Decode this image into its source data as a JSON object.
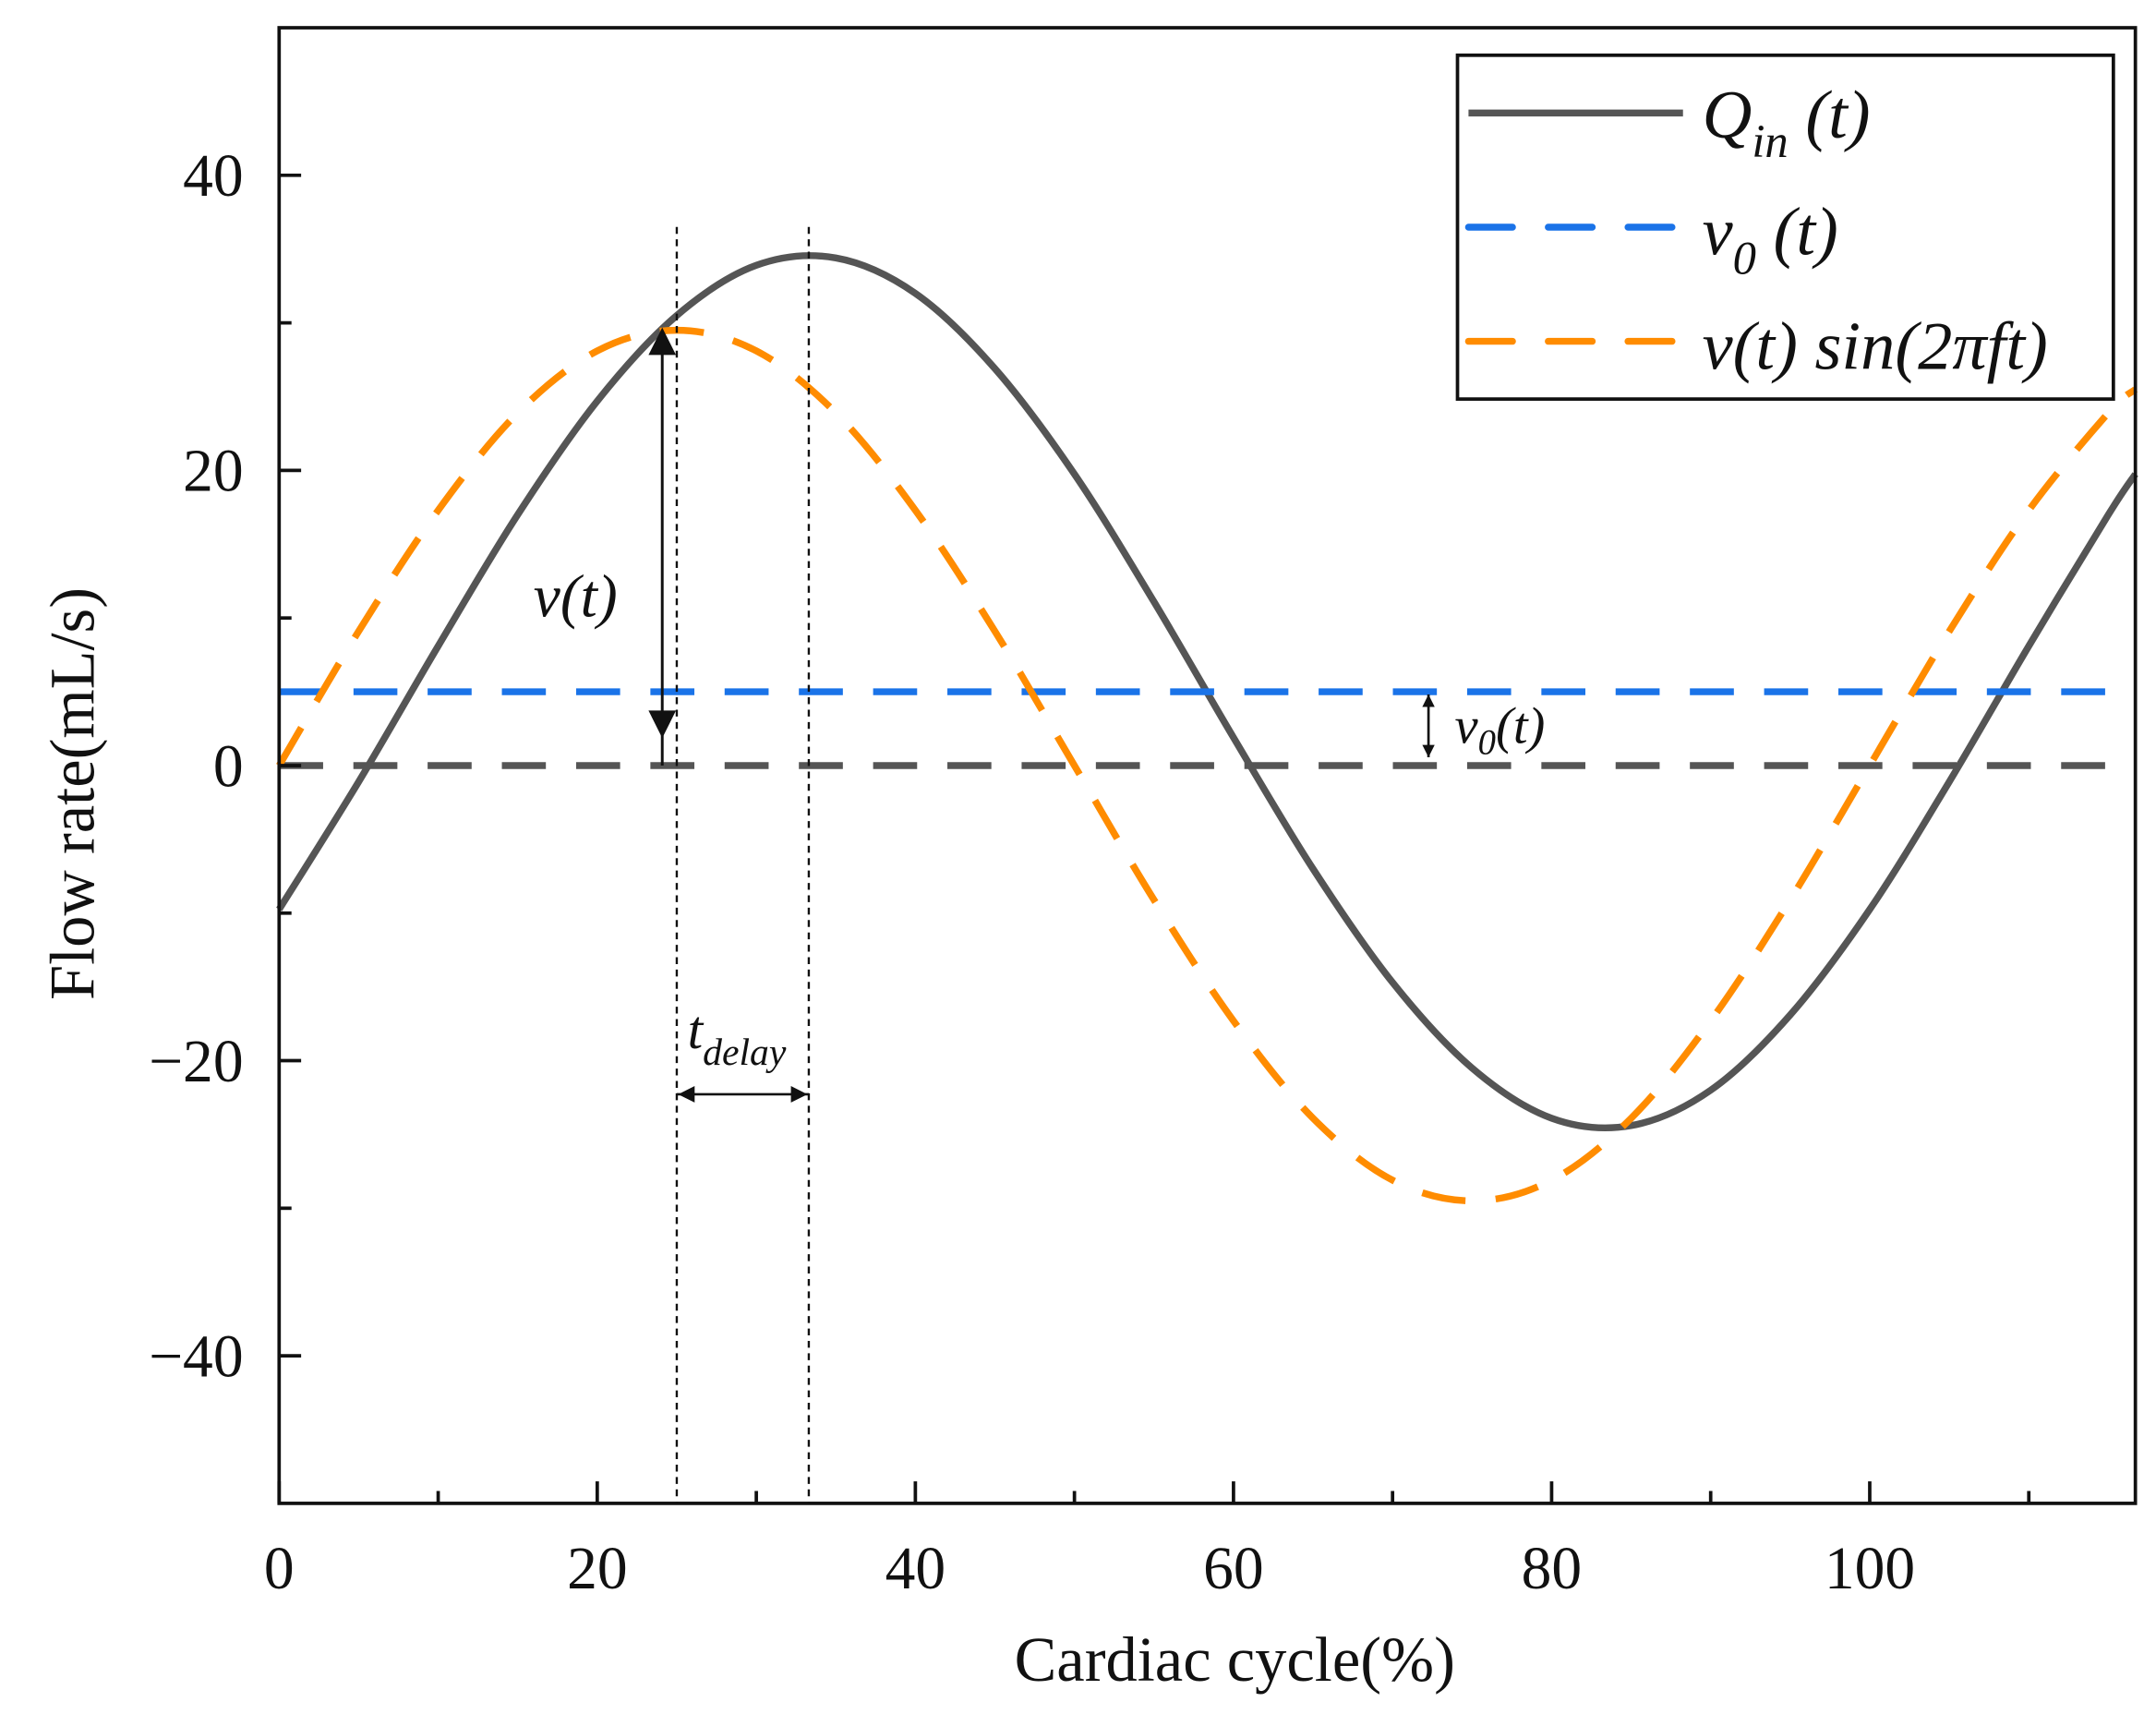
{
  "chart_data": {
    "type": "line",
    "xlabel": "Cardiac cycle(%)",
    "ylabel": "Flow rate(mL/s)",
    "xlim": [
      0,
      116.7
    ],
    "ylim": [
      -50,
      50
    ],
    "xticks": [
      0,
      20,
      40,
      60,
      80,
      100
    ],
    "xtick_labels": [
      "0",
      "20",
      "40",
      "60",
      "80",
      "100"
    ],
    "xminor": [
      10,
      30,
      50,
      70,
      90,
      110
    ],
    "yticks": [
      40,
      20,
      0,
      -20,
      -40
    ],
    "ytick_labels": [
      "40",
      "20",
      "0",
      "−20",
      "−40"
    ],
    "yminor": [
      30,
      10,
      -10,
      -30
    ],
    "grid": false,
    "legend_placement": "top-right",
    "x": [
      0,
      5,
      10,
      15,
      20,
      25,
      30,
      35,
      40,
      45,
      50,
      55,
      60,
      65,
      70,
      75,
      80,
      85,
      90,
      95,
      100,
      105,
      110,
      115,
      116.7
    ],
    "series": [
      {
        "name": "Qin (t)",
        "style": "solid",
        "color": "#555555",
        "values": [
          -9.75,
          -1.1,
          8.1,
          17.0,
          24.7,
          30.5,
          33.9,
          34.4,
          32.0,
          26.9,
          19.75,
          11.1,
          1.9,
          -7.0,
          -14.7,
          -20.5,
          -23.9,
          -24.4,
          -22.0,
          -16.9,
          -9.75,
          -1.1,
          8.1,
          17.0,
          19.75
        ]
      },
      {
        "name": "v0 (t)",
        "style": "dashed",
        "color": "#1a73e8",
        "values": [
          5,
          5,
          5,
          5,
          5,
          5,
          5,
          5,
          5,
          5,
          5,
          5,
          5,
          5,
          5,
          5,
          5,
          5,
          5,
          5,
          5,
          5,
          5,
          5,
          5
        ]
      },
      {
        "name": "v(t) sin(2πft)",
        "style": "dashed",
        "color": "#ff8c00",
        "values": [
          0,
          9.1,
          17.3,
          23.9,
          28.1,
          29.5,
          28.1,
          23.9,
          17.3,
          9.1,
          0,
          -9.1,
          -17.3,
          -23.9,
          -28.1,
          -29.5,
          -28.1,
          -23.9,
          -17.3,
          -9.1,
          0,
          9.1,
          17.3,
          23.9,
          25.5
        ]
      }
    ],
    "zero_line": {
      "y": 0,
      "color": "#555555",
      "style": "dashed"
    },
    "annotations": {
      "peak_lines_x": [
        25,
        33.3
      ],
      "v_arrow": {
        "x": 24,
        "from": 29.5,
        "to": 0,
        "label": "v(t)"
      },
      "v0_arrow": {
        "x": 72,
        "from": 5,
        "to": 0,
        "label_base": "v",
        "label_sub": "0",
        "label_rest": "(t)"
      },
      "tdelay_arrow": {
        "y": -22,
        "from": 25,
        "to": 33.3,
        "label_base": "t",
        "label_sub": "delay"
      }
    },
    "legend": [
      {
        "base": "Q",
        "sub": "in",
        "rest": " (t)"
      },
      {
        "base": "v",
        "sub": "0",
        "rest": " (t)"
      },
      {
        "base": "v(t) sin(2πft)",
        "sub": "",
        "rest": ""
      }
    ]
  }
}
